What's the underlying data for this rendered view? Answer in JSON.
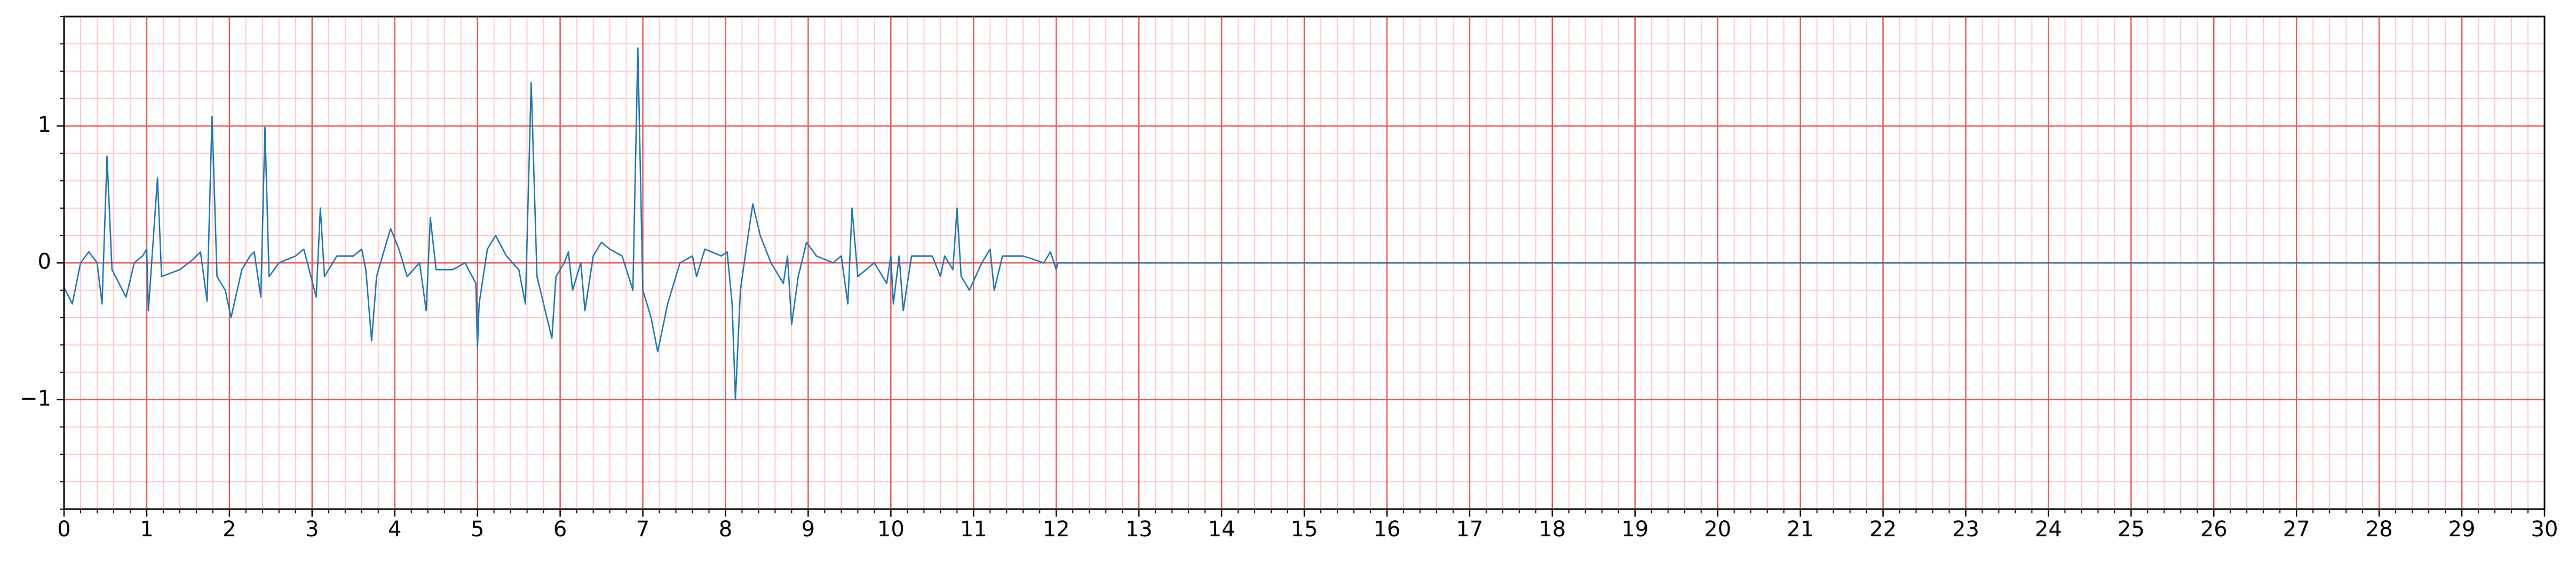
{
  "chart_data": {
    "type": "line",
    "xlim": [
      0,
      30
    ],
    "ylim": [
      -1.8,
      1.8
    ],
    "xticks": [
      0,
      1,
      2,
      3,
      4,
      5,
      6,
      7,
      8,
      9,
      10,
      11,
      12,
      13,
      14,
      15,
      16,
      17,
      18,
      19,
      20,
      21,
      22,
      23,
      24,
      25,
      26,
      27,
      28,
      29,
      30
    ],
    "yticks": [
      {
        "value": -1,
        "label": "−1"
      },
      0,
      1
    ],
    "grid": true,
    "minor_grid_step": 0.2,
    "major_grid_color": "#e8595a",
    "minor_grid_color": "#ffc9c9",
    "series": [
      {
        "color": "#1f77b4",
        "x": [
          0,
          0.1,
          0.2,
          0.3,
          0.4,
          0.46,
          0.52,
          0.58,
          0.75,
          0.85,
          0.95,
          1.0,
          1.02,
          1.13,
          1.18,
          1.4,
          1.55,
          1.65,
          1.73,
          1.79,
          1.85,
          1.95,
          2.02,
          2.15,
          2.25,
          2.3,
          2.38,
          2.43,
          2.48,
          2.6,
          2.8,
          2.9,
          3.05,
          3.1,
          3.15,
          3.3,
          3.5,
          3.6,
          3.65,
          3.72,
          3.78,
          3.9,
          3.95,
          4.05,
          4.15,
          4.3,
          4.38,
          4.43,
          4.5,
          4.7,
          4.85,
          4.98,
          5.0,
          5.02,
          5.12,
          5.22,
          5.35,
          5.5,
          5.58,
          5.65,
          5.72,
          5.8,
          5.9,
          5.95,
          6.05,
          6.1,
          6.15,
          6.25,
          6.3,
          6.4,
          6.5,
          6.6,
          6.75,
          6.88,
          6.94,
          7.0,
          7.1,
          7.18,
          7.3,
          7.45,
          7.6,
          7.65,
          7.75,
          7.95,
          8.02,
          8.08,
          8.12,
          8.18,
          8.25,
          8.33,
          8.42,
          8.55,
          8.7,
          8.75,
          8.8,
          8.88,
          8.98,
          9.1,
          9.3,
          9.4,
          9.48,
          9.53,
          9.6,
          9.8,
          9.95,
          10.0,
          10.03,
          10.1,
          10.15,
          10.25,
          10.5,
          10.6,
          10.65,
          10.75,
          10.8,
          10.85,
          10.95,
          11.1,
          11.2,
          11.25,
          11.35,
          11.6,
          11.85,
          11.93,
          12.0,
          12.02,
          30
        ],
        "values": [
          -0.18,
          -0.3,
          0,
          0.08,
          0,
          -0.3,
          0.78,
          -0.05,
          -0.25,
          0,
          0.05,
          0.1,
          -0.35,
          0.62,
          -0.1,
          -0.05,
          0.02,
          0.08,
          -0.28,
          1.07,
          -0.1,
          -0.2,
          -0.4,
          -0.05,
          0.05,
          0.08,
          -0.25,
          0.99,
          -0.1,
          0,
          0.05,
          0.1,
          -0.25,
          0.4,
          -0.1,
          0.05,
          0.05,
          0.1,
          -0.05,
          -0.57,
          -0.1,
          0.15,
          0.25,
          0.1,
          -0.1,
          0,
          -0.35,
          0.33,
          -0.05,
          -0.05,
          0,
          -0.15,
          -0.62,
          -0.3,
          0.1,
          0.2,
          0.05,
          -0.05,
          -0.3,
          1.32,
          -0.1,
          -0.3,
          -0.55,
          -0.1,
          0,
          0.08,
          -0.2,
          0,
          -0.35,
          0.05,
          0.15,
          0.1,
          0.05,
          -0.2,
          1.57,
          -0.2,
          -0.4,
          -0.65,
          -0.3,
          0,
          0.05,
          -0.1,
          0.1,
          0.05,
          0.08,
          -0.3,
          -1.0,
          -0.2,
          0.1,
          0.43,
          0.2,
          0,
          -0.15,
          0.05,
          -0.45,
          -0.1,
          0.15,
          0.05,
          0,
          0.05,
          -0.3,
          0.4,
          -0.1,
          0,
          -0.15,
          0.05,
          -0.3,
          0.05,
          -0.35,
          0.05,
          0.05,
          -0.1,
          0.05,
          -0.05,
          0.4,
          -0.1,
          -0.2,
          0,
          0.1,
          -0.2,
          0.05,
          0.05,
          0,
          0.08,
          -0.05,
          0,
          0
        ]
      }
    ]
  }
}
